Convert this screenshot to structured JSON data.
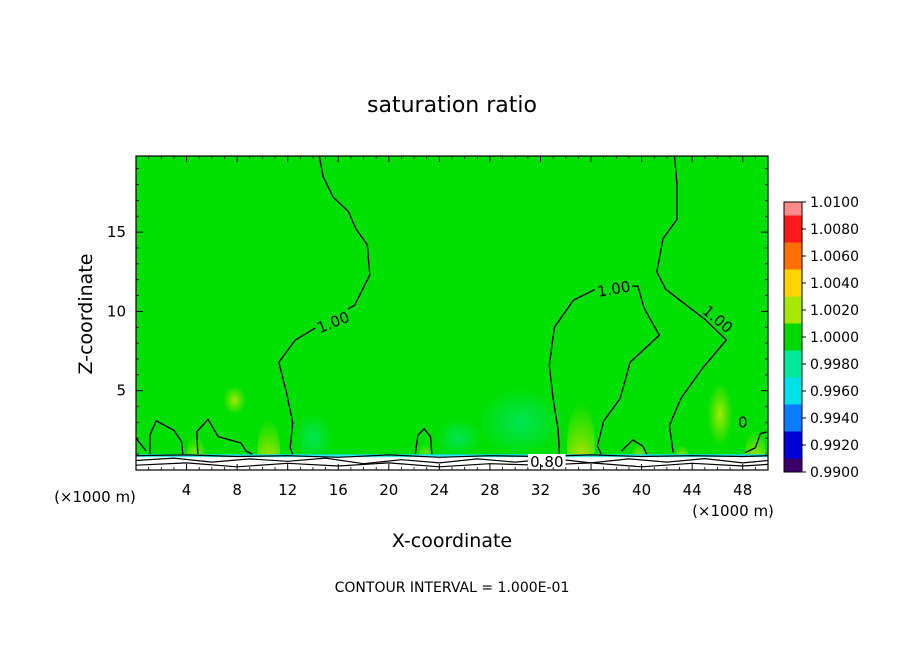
{
  "chart_data": {
    "type": "heatmap",
    "title": "saturation ratio",
    "xlabel": "X-coordinate",
    "ylabel": "Z-coordinate",
    "x_unit_left": "(×1000 m)",
    "x_unit_right": "(×1000 m)",
    "footer": "CONTOUR INTERVAL = 1.000E-01",
    "xlim": [
      0,
      50
    ],
    "ylim": [
      0,
      19.8
    ],
    "x_ticks": [
      "4",
      "8",
      "12",
      "16",
      "20",
      "24",
      "28",
      "32",
      "36",
      "40",
      "44",
      "48"
    ],
    "y_ticks": [
      "5",
      "10",
      "15"
    ],
    "background_color": "#00e000",
    "colorbar": {
      "labels": [
        "1.0100",
        "1.0080",
        "1.0060",
        "1.0040",
        "1.0020",
        "1.0000",
        "0.9980",
        "0.9960",
        "0.9940",
        "0.9920",
        "0.9900"
      ],
      "colors": [
        "#ff8c8c",
        "#ff1a1a",
        "#ff7000",
        "#ffd400",
        "#a8e800",
        "#00d800",
        "#00e89a",
        "#00e0e8",
        "#0a7cff",
        "#0000d8",
        "#3a006a"
      ]
    },
    "contour_labels": [
      {
        "text": "1.00",
        "x": 15.6,
        "y": 9.3,
        "angle": -22
      },
      {
        "text": "1.00",
        "x": 37.8,
        "y": 11.4,
        "angle": -10
      },
      {
        "text": "1.00",
        "x": 46.0,
        "y": 9.5,
        "angle": 40
      },
      {
        "text": "0",
        "x": 48.0,
        "y": 3.0,
        "angle": 0
      },
      {
        "text": "0.80",
        "x": 32.5,
        "y": 0.5,
        "angle": 0
      }
    ],
    "contours": [
      [
        [
          14.5,
          19.8
        ],
        [
          14.8,
          18.5
        ],
        [
          15.6,
          17.2
        ],
        [
          16.8,
          16.3
        ],
        [
          17.4,
          15.2
        ],
        [
          18.3,
          14.2
        ],
        [
          18.5,
          12.3
        ],
        [
          17.3,
          10.4
        ],
        [
          14.7,
          9.2
        ],
        [
          12.6,
          8.2
        ],
        [
          11.3,
          6.8
        ],
        [
          11.9,
          4.9
        ],
        [
          12.4,
          3.0
        ],
        [
          12.2,
          1.4
        ],
        [
          12.4,
          1.0
        ]
      ],
      [
        [
          42.6,
          19.8
        ],
        [
          42.8,
          18.0
        ],
        [
          42.8,
          15.8
        ],
        [
          41.7,
          14.6
        ],
        [
          41.2,
          12.5
        ],
        [
          41.9,
          11.4
        ],
        [
          45.0,
          9.5
        ],
        [
          46.7,
          8.2
        ],
        [
          44.8,
          6.4
        ],
        [
          43.1,
          4.5
        ],
        [
          42.2,
          2.8
        ],
        [
          42.5,
          1.1
        ]
      ],
      [
        [
          33.5,
          1.0
        ],
        [
          33.4,
          2.5
        ],
        [
          33.0,
          4.5
        ],
        [
          32.7,
          6.6
        ],
        [
          33.1,
          9.0
        ],
        [
          34.6,
          10.7
        ],
        [
          36.6,
          11.5
        ],
        [
          39.7,
          11.6
        ],
        [
          40.2,
          10.2
        ],
        [
          41.4,
          8.5
        ],
        [
          39.1,
          6.8
        ],
        [
          38.3,
          4.5
        ],
        [
          37.0,
          3.1
        ],
        [
          36.5,
          1.5
        ],
        [
          36.8,
          1.0
        ]
      ],
      [
        [
          1.1,
          1.0
        ],
        [
          1.1,
          2.2
        ],
        [
          1.6,
          3.1
        ],
        [
          3.0,
          2.5
        ],
        [
          3.6,
          1.8
        ],
        [
          3.7,
          1.0
        ]
      ],
      [
        [
          4.9,
          1.0
        ],
        [
          4.8,
          2.4
        ],
        [
          5.7,
          3.2
        ],
        [
          6.5,
          2.1
        ],
        [
          8.3,
          1.7
        ],
        [
          8.7,
          1.2
        ],
        [
          9.2,
          1.0
        ]
      ],
      [
        [
          22.1,
          1.0
        ],
        [
          22.3,
          2.2
        ],
        [
          22.8,
          2.6
        ],
        [
          23.3,
          2.1
        ],
        [
          23.4,
          1.0
        ]
      ],
      [
        [
          38.4,
          1.2
        ],
        [
          39.3,
          1.9
        ],
        [
          40.1,
          1.5
        ],
        [
          40.4,
          1.0
        ]
      ],
      [
        [
          48.2,
          1.1
        ],
        [
          49.0,
          1.4
        ],
        [
          49.4,
          2.3
        ],
        [
          49.9,
          2.4
        ]
      ],
      [
        [
          0,
          2.0
        ],
        [
          0.5,
          1.5
        ],
        [
          0.8,
          1.2
        ]
      ]
    ],
    "surface_lines": [
      [
        [
          0,
          0.9
        ],
        [
          4,
          0.95
        ],
        [
          8,
          0.85
        ],
        [
          12,
          0.9
        ],
        [
          16,
          0.8
        ],
        [
          20,
          0.95
        ],
        [
          24,
          0.8
        ],
        [
          28,
          0.9
        ],
        [
          32,
          0.85
        ],
        [
          36,
          0.95
        ],
        [
          40,
          0.85
        ],
        [
          44,
          0.9
        ],
        [
          48,
          0.85
        ],
        [
          50,
          0.9
        ]
      ],
      [
        [
          0,
          0.6
        ],
        [
          3,
          0.75
        ],
        [
          6,
          0.5
        ],
        [
          9,
          0.7
        ],
        [
          12,
          0.55
        ],
        [
          15,
          0.75
        ],
        [
          18,
          0.4
        ],
        [
          21,
          0.65
        ],
        [
          24,
          0.45
        ],
        [
          27,
          0.7
        ],
        [
          30,
          0.5
        ],
        [
          33,
          0.72
        ],
        [
          36,
          0.45
        ],
        [
          39,
          0.7
        ],
        [
          42,
          0.5
        ],
        [
          45,
          0.72
        ],
        [
          48,
          0.45
        ],
        [
          50,
          0.6
        ]
      ],
      [
        [
          0,
          0.3
        ],
        [
          4,
          0.45
        ],
        [
          8,
          0.2
        ],
        [
          12,
          0.42
        ],
        [
          16,
          0.25
        ],
        [
          20,
          0.45
        ],
        [
          24,
          0.2
        ],
        [
          28,
          0.4
        ],
        [
          32,
          0.3
        ],
        [
          36,
          0.45
        ],
        [
          40,
          0.2
        ],
        [
          44,
          0.42
        ],
        [
          48,
          0.25
        ],
        [
          50,
          0.35
        ]
      ]
    ],
    "hotspots": [
      {
        "x": 4.7,
        "y": 0.9,
        "rx": 0.7,
        "ry": 1.3,
        "color": "#ff3000"
      },
      {
        "x": 10.5,
        "y": 1.2,
        "rx": 0.9,
        "ry": 2.0,
        "color": "#ff8c00"
      },
      {
        "x": 22.9,
        "y": 0.9,
        "rx": 0.5,
        "ry": 0.8,
        "color": "#ff3000"
      },
      {
        "x": 35.2,
        "y": 1.5,
        "rx": 1.1,
        "ry": 2.8,
        "color": "#ffd400"
      },
      {
        "x": 39.8,
        "y": 0.9,
        "rx": 0.5,
        "ry": 0.8,
        "color": "#ff5000"
      },
      {
        "x": 43.2,
        "y": 0.9,
        "rx": 0.5,
        "ry": 0.7,
        "color": "#ff7000"
      },
      {
        "x": 49.0,
        "y": 1.0,
        "rx": 0.8,
        "ry": 1.5,
        "color": "#ff2000"
      },
      {
        "x": 46.2,
        "y": 3.5,
        "rx": 1.0,
        "ry": 2.0,
        "color": "#a8e800"
      },
      {
        "x": 7.8,
        "y": 4.4,
        "rx": 0.9,
        "ry": 0.9,
        "color": "#a8e800"
      }
    ],
    "cool_spots": [
      {
        "x": 14.0,
        "y": 2.0,
        "rx": 1.6,
        "ry": 1.6,
        "color": "#00e89a"
      },
      {
        "x": 30.5,
        "y": 3.0,
        "rx": 3.5,
        "ry": 2.2,
        "color": "#00e89a"
      },
      {
        "x": 25.5,
        "y": 2.0,
        "rx": 1.8,
        "ry": 1.2,
        "color": "#00e89a"
      }
    ]
  }
}
